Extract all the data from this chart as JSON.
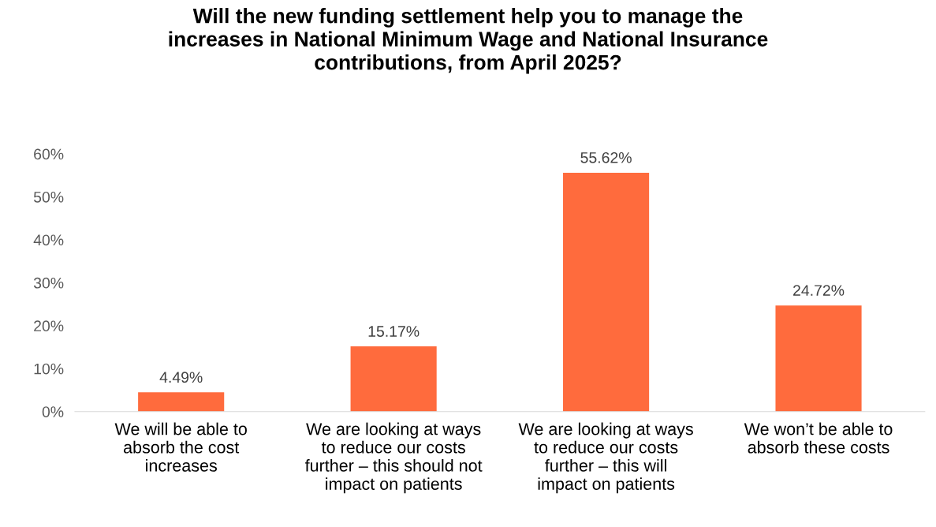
{
  "chart_data": {
    "type": "bar",
    "title": "Will the new funding settlement help you to manage the\nincreases in National Minimum Wage and National Insurance\ncontributions, from April 2025?",
    "categories": [
      "We will be able to\nabsorb the cost\nincreases",
      "We are looking at ways\nto reduce our costs\nfurther – this should not\nimpact on patients",
      "We are looking at ways\nto reduce our costs\nfurther – this will\nimpact on patients",
      "We won’t be able to\nabsorb these costs"
    ],
    "values": [
      4.49,
      15.17,
      55.62,
      24.72
    ],
    "value_labels": [
      "4.49%",
      "15.17%",
      "55.62%",
      "24.72%"
    ],
    "color": "#ff6b3d",
    "ylim": [
      0,
      60
    ],
    "yticks": [
      {
        "value": 0,
        "label": "0%"
      },
      {
        "value": 10,
        "label": "10%"
      },
      {
        "value": 20,
        "label": "20%"
      },
      {
        "value": 30,
        "label": "30%"
      },
      {
        "value": 40,
        "label": "40%"
      },
      {
        "value": 50,
        "label": "50%"
      },
      {
        "value": 60,
        "label": "60%"
      }
    ],
    "grid": false,
    "legend": false
  }
}
